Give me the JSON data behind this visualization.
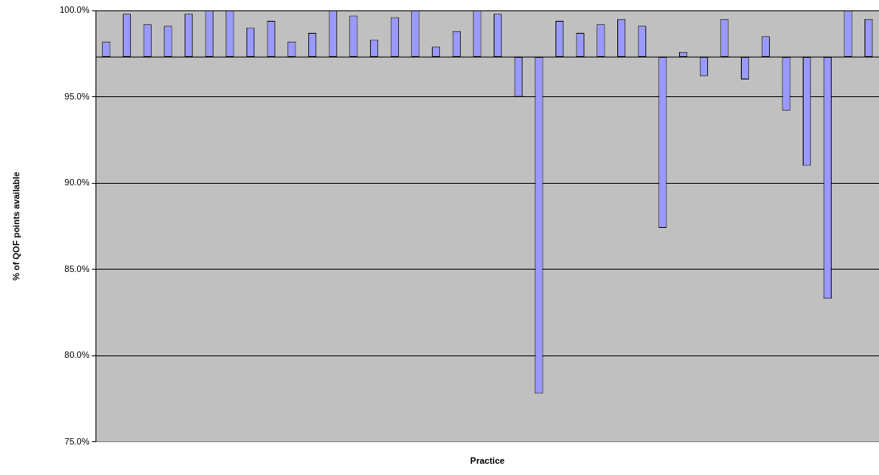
{
  "chart_data": {
    "type": "bar",
    "xlabel": "Practice",
    "ylabel": "% of QOF points available",
    "categories": [
      null,
      null,
      null,
      null,
      null,
      null,
      null,
      null,
      null,
      null,
      null,
      null,
      null,
      null,
      null,
      null,
      null,
      null,
      null,
      null,
      null,
      null,
      null,
      null,
      null,
      null,
      null,
      null,
      null,
      null,
      null,
      null,
      null,
      null,
      null,
      null,
      null,
      null
    ],
    "base": [
      97.3,
      97.3,
      97.3,
      97.3,
      97.3,
      97.3,
      97.3,
      97.3,
      97.3,
      97.3,
      97.3,
      97.3,
      97.3,
      97.3,
      97.3,
      97.3,
      97.3,
      97.3,
      97.3,
      97.3,
      97.3,
      97.3,
      97.3,
      97.3,
      97.3,
      97.3,
      97.3,
      97.3,
      97.3,
      97.3,
      97.3,
      97.3,
      97.3,
      97.3,
      97.3,
      97.3,
      97.3,
      97.3
    ],
    "values": [
      0.9,
      2.5,
      1.9,
      1.8,
      2.5,
      2.7,
      2.7,
      1.7,
      2.1,
      0.9,
      1.4,
      2.7,
      2.4,
      1.0,
      2.3,
      2.7,
      0.6,
      1.5,
      2.7,
      2.5,
      -2.3,
      -19.5,
      2.1,
      1.4,
      1.9,
      2.2,
      1.8,
      -9.9,
      0.3,
      -1.1,
      2.2,
      -1.3,
      1.2,
      -3.1,
      -6.3,
      -14.0,
      2.7,
      2.2
    ],
    "color": "#9999ff",
    "ylim": [
      75,
      100
    ],
    "yticks": [
      {
        "value": 75,
        "label": "75.0%"
      },
      {
        "value": 80,
        "label": "80.0%"
      },
      {
        "value": 85,
        "label": "85.0%"
      },
      {
        "value": 90,
        "label": "90.0%"
      },
      {
        "value": 95,
        "label": "95.0%"
      },
      {
        "value": 100,
        "label": "100.0%"
      }
    ],
    "grid": "y",
    "ref_lines": [
      {
        "axis": "y",
        "value": 97.3,
        "color": "#000000"
      }
    ]
  }
}
